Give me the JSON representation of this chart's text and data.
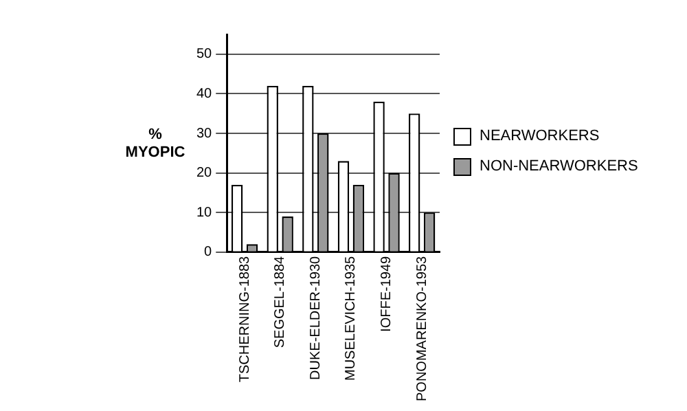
{
  "chart_data": {
    "type": "bar",
    "ylabel": "% MYOPIC",
    "categories": [
      "TSCHERNING-1883",
      "SEGGEL-1884",
      "DUKE-ELDER-1930",
      "MUSELEVICH-1935",
      "IOFFE-1949",
      "PONOMARENKO-1953"
    ],
    "series": [
      {
        "name": "NEARWORKERS",
        "color": "#ffffff",
        "values": [
          17,
          42,
          42,
          23,
          38,
          35
        ]
      },
      {
        "name": "NON-NEARWORKERS",
        "color": "#9a9a9a",
        "values": [
          2,
          9,
          30,
          17,
          20,
          10
        ]
      }
    ],
    "ylim": [
      0,
      55
    ],
    "yticks": [
      0,
      10,
      20,
      30,
      40,
      50
    ],
    "grid": "y",
    "legend": "right"
  }
}
